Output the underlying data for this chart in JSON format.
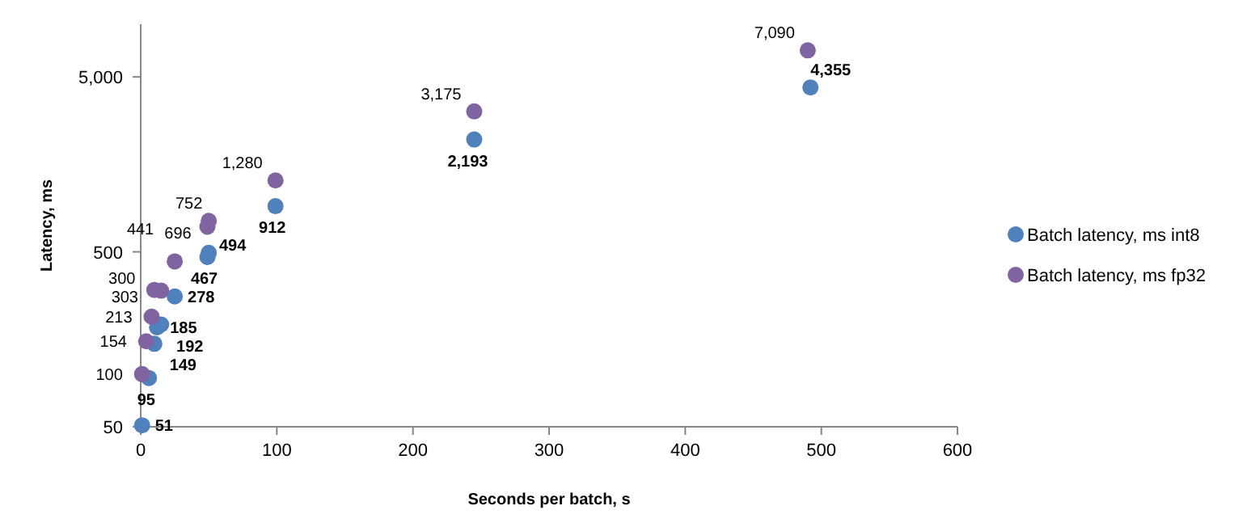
{
  "chart_data": {
    "type": "scatter",
    "xlabel": "Seconds per batch, s",
    "ylabel": "Latency, ms",
    "log": "y",
    "xlim": [
      0,
      600
    ],
    "xticks": [
      0,
      100,
      200,
      300,
      400,
      500,
      600
    ],
    "ylim": [
      50,
      10000
    ],
    "yticks": [
      50,
      500,
      {
        "value": 5000,
        "label": "5,000"
      }
    ],
    "grid": false,
    "legend": "right",
    "marker": "circle",
    "series": [
      {
        "name": "Batch latency, ms int8",
        "color": "#4f81bd",
        "x": [
          1,
          6,
          10,
          12,
          15,
          25,
          49,
          50,
          99,
          245,
          492
        ],
        "values": [
          51,
          95,
          149,
          185,
          192,
          278,
          467,
          494,
          912,
          2193,
          4355
        ],
        "value_labels": [
          "51",
          "95",
          "149",
          "185",
          "192",
          "278",
          "467",
          "494",
          "912",
          "2,193",
          "4,355"
        ]
      },
      {
        "name": "Batch latency, ms fp32",
        "color": "#8064a2",
        "x": [
          1,
          4,
          8,
          10,
          15,
          25,
          49,
          50,
          99,
          245,
          490
        ],
        "values": [
          100,
          154,
          213,
          303,
          300,
          441,
          696,
          752,
          1280,
          3175,
          7090
        ],
        "value_labels": [
          "100",
          "154",
          "213",
          "303",
          "300",
          "441",
          "696",
          "752",
          "1,280",
          "3,175",
          "7,090"
        ]
      }
    ]
  }
}
